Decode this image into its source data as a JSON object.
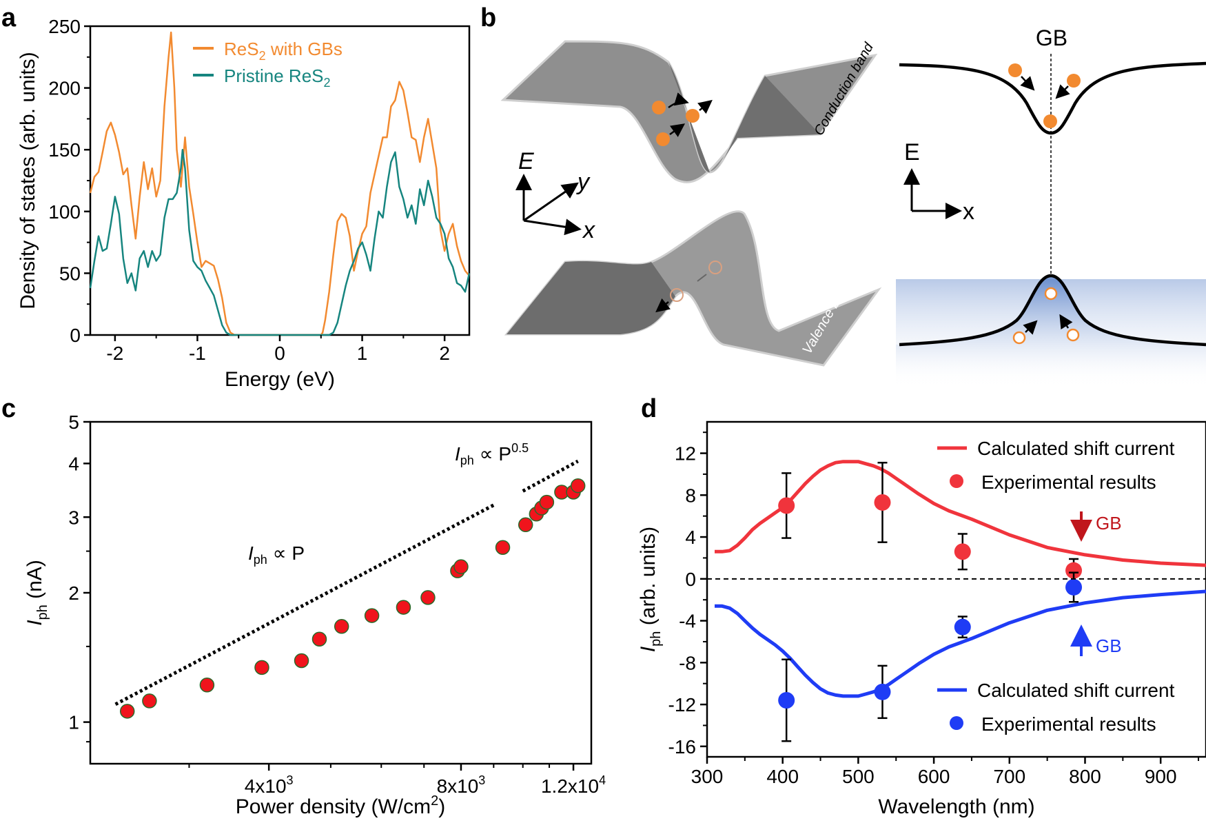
{
  "colors": {
    "orange": "#F28A30",
    "teal": "#16857F",
    "red": "#F0343C",
    "blue": "#1F3CF5",
    "dark_red": "#C0161C",
    "gray": "#8a8a8a"
  },
  "panels": {
    "a": "a",
    "b": "b",
    "c": "c",
    "d": "d"
  },
  "panel_b": {
    "conduction_label": "Conduction band",
    "valence_label": "Valence band",
    "axis_e": "E",
    "axis_x": "x",
    "axis_y": "y",
    "gb_label": "GB",
    "right_axis_e": "E",
    "right_axis_x": "x"
  },
  "chart_data": [
    {
      "id": "a",
      "type": "line",
      "xlabel": "Energy (eV)",
      "ylabel": "Density of states (arb. units)",
      "xlim": [
        -2.3,
        2.3
      ],
      "ylim": [
        0,
        250
      ],
      "xticks": [
        -2,
        -1,
        0,
        1,
        2
      ],
      "xtick_labels": [
        "-2",
        "-1",
        "0",
        "1",
        "2"
      ],
      "yticks": [
        0,
        50,
        100,
        150,
        200,
        250
      ],
      "ytick_labels": [
        "0",
        "50",
        "100",
        "150",
        "200",
        "250"
      ],
      "legend": [
        {
          "name": "ReS",
          "sub": "2",
          "suffix": " with GBs"
        },
        {
          "name": "Pristine ReS",
          "sub": "2",
          "suffix": ""
        }
      ],
      "series": [
        {
          "name": "ReS2 with GBs",
          "color": "#F28A30",
          "x": [
            -2.3,
            -2.25,
            -2.2,
            -2.15,
            -2.1,
            -2.05,
            -2.0,
            -1.95,
            -1.9,
            -1.85,
            -1.8,
            -1.75,
            -1.7,
            -1.65,
            -1.6,
            -1.55,
            -1.5,
            -1.45,
            -1.4,
            -1.35,
            -1.32,
            -1.28,
            -1.25,
            -1.2,
            -1.15,
            -1.1,
            -1.05,
            -1.0,
            -0.95,
            -0.9,
            -0.85,
            -0.8,
            -0.75,
            -0.7,
            -0.65,
            -0.6,
            -0.55,
            -0.52,
            -0.5,
            0.5,
            0.52,
            0.55,
            0.6,
            0.65,
            0.7,
            0.75,
            0.8,
            0.85,
            0.9,
            0.95,
            1.0,
            1.05,
            1.1,
            1.15,
            1.2,
            1.25,
            1.3,
            1.35,
            1.4,
            1.45,
            1.5,
            1.55,
            1.6,
            1.65,
            1.7,
            1.75,
            1.8,
            1.85,
            1.9,
            1.95,
            2.0,
            2.05,
            2.1,
            2.15,
            2.2,
            2.25,
            2.3
          ],
          "y": [
            115,
            128,
            132,
            148,
            165,
            172,
            162,
            148,
            130,
            135,
            105,
            78,
            112,
            140,
            118,
            135,
            112,
            125,
            185,
            225,
            245,
            200,
            150,
            120,
            160,
            120,
            98,
            75,
            55,
            60,
            58,
            56,
            45,
            30,
            10,
            2,
            0,
            0,
            0,
            0,
            2,
            12,
            35,
            65,
            92,
            98,
            95,
            80,
            52,
            68,
            82,
            88,
            115,
            130,
            145,
            160,
            160,
            185,
            190,
            205,
            198,
            180,
            160,
            158,
            140,
            160,
            175,
            155,
            135,
            85,
            68,
            82,
            90,
            72,
            60,
            52,
            48
          ]
        },
        {
          "name": "Pristine ReS2",
          "color": "#16857F",
          "x": [
            -2.3,
            -2.25,
            -2.2,
            -2.15,
            -2.1,
            -2.05,
            -2.0,
            -1.95,
            -1.9,
            -1.85,
            -1.8,
            -1.75,
            -1.7,
            -1.65,
            -1.6,
            -1.55,
            -1.5,
            -1.45,
            -1.4,
            -1.35,
            -1.3,
            -1.25,
            -1.2,
            -1.18,
            -1.15,
            -1.1,
            -1.05,
            -1.0,
            -0.95,
            -0.9,
            -0.85,
            -0.8,
            -0.75,
            -0.7,
            -0.65,
            -0.6,
            0.6,
            0.65,
            0.7,
            0.75,
            0.8,
            0.85,
            0.9,
            0.95,
            1.0,
            1.05,
            1.1,
            1.15,
            1.2,
            1.25,
            1.3,
            1.35,
            1.4,
            1.45,
            1.5,
            1.55,
            1.6,
            1.65,
            1.7,
            1.75,
            1.8,
            1.85,
            1.9,
            1.95,
            2.0,
            2.05,
            2.1,
            2.15,
            2.2,
            2.25,
            2.3
          ],
          "y": [
            38,
            60,
            80,
            68,
            70,
            90,
            112,
            98,
            62,
            42,
            50,
            36,
            62,
            68,
            55,
            68,
            60,
            65,
            95,
            110,
            110,
            115,
            135,
            150,
            135,
            85,
            60,
            55,
            52,
            44,
            38,
            32,
            20,
            8,
            2,
            0,
            0,
            2,
            10,
            25,
            40,
            52,
            60,
            70,
            75,
            65,
            52,
            78,
            100,
            95,
            120,
            140,
            148,
            120,
            110,
            95,
            105,
            90,
            118,
            105,
            125,
            112,
            95,
            90,
            82,
            62,
            55,
            42,
            40,
            35,
            50
          ]
        }
      ]
    },
    {
      "id": "c",
      "type": "scatter",
      "scale": "log-log",
      "xlabel": "Power density (W/cm",
      "xlabel_sup": "2",
      "xlabel_end": ")",
      "ylabel_main": "I",
      "ylabel_sub": "ph",
      "ylabel_end": " (nA)",
      "xlim": [
        2100,
        12800
      ],
      "ylim": [
        0.8,
        5
      ],
      "xticks": [
        4000,
        8000,
        12000
      ],
      "xtick_labels": [
        "4x10",
        "8x10",
        "1.2x10"
      ],
      "xtick_sups": [
        "3",
        "3",
        "4"
      ],
      "yticks": [
        1,
        2,
        3,
        4,
        5
      ],
      "ytick_labels": [
        "1",
        "2",
        "3",
        "4",
        "5"
      ],
      "annotations": {
        "linear": {
          "main": "I",
          "sub": "ph",
          "rest": " ∝ P"
        },
        "sublinear": {
          "main": "I",
          "sub": "ph",
          "rest": " ∝ P",
          "sup": "0.5"
        }
      },
      "points": {
        "x": [
          2400,
          2600,
          3200,
          3900,
          4500,
          4800,
          5200,
          5800,
          6500,
          7100,
          7900,
          8000,
          9300,
          10100,
          10500,
          10700,
          10900,
          11500,
          12000,
          12200
        ],
        "y": [
          1.06,
          1.12,
          1.22,
          1.34,
          1.39,
          1.56,
          1.67,
          1.77,
          1.85,
          1.95,
          2.25,
          2.3,
          2.55,
          2.88,
          3.05,
          3.15,
          3.25,
          3.43,
          3.43,
          3.55
        ]
      },
      "guide_lines": [
        {
          "x": [
            2300,
            9000
          ],
          "y": [
            1.1,
            3.2
          ]
        },
        {
          "x": [
            10000,
            12200
          ],
          "y": [
            3.45,
            4.05
          ]
        }
      ]
    },
    {
      "id": "d",
      "type": "line",
      "xlabel": "Wavelength (nm)",
      "ylabel_main": "I",
      "ylabel_sub": "ph",
      "ylabel_end": " (arb. units)",
      "xlim": [
        300,
        960
      ],
      "ylim": [
        -17,
        15
      ],
      "xticks": [
        300,
        400,
        500,
        600,
        700,
        800,
        900
      ],
      "xtick_labels": [
        "300",
        "400",
        "500",
        "600",
        "700",
        "800",
        "900"
      ],
      "yticks": [
        12,
        8,
        4,
        0,
        -4,
        -8,
        -12,
        -16
      ],
      "ytick_labels": [
        "12",
        "8",
        "4",
        "0",
        "-4",
        "-8",
        "-12",
        "-16"
      ],
      "legend": [
        "Calculated shift current",
        "Experimental results",
        "Calculated shift current",
        "Experimental results"
      ],
      "gb_labels": [
        "GB",
        "GB"
      ],
      "series": [
        {
          "name": "Calculated shift current (GB down)",
          "color": "#F0343C",
          "x": [
            310,
            320,
            330,
            340,
            350,
            360,
            370,
            380,
            390,
            400,
            410,
            420,
            430,
            440,
            450,
            460,
            470,
            480,
            490,
            500,
            510,
            520,
            530,
            540,
            550,
            560,
            570,
            580,
            600,
            620,
            650,
            700,
            750,
            800,
            850,
            900,
            960
          ],
          "y": [
            2.6,
            2.6,
            2.7,
            3.2,
            3.9,
            4.7,
            5.3,
            5.8,
            6.3,
            6.8,
            7.5,
            8.3,
            9.1,
            9.8,
            10.4,
            10.8,
            11.1,
            11.2,
            11.2,
            11.2,
            11.0,
            10.8,
            10.5,
            10.1,
            9.6,
            9.1,
            8.6,
            8.1,
            7.2,
            6.5,
            5.7,
            4.2,
            3.0,
            2.3,
            1.8,
            1.5,
            1.3
          ]
        },
        {
          "name": "Calculated shift current (GB up)",
          "color": "#1F3CF5",
          "x": [
            310,
            320,
            330,
            340,
            350,
            360,
            370,
            380,
            390,
            400,
            410,
            420,
            430,
            440,
            450,
            460,
            470,
            480,
            490,
            500,
            510,
            520,
            530,
            540,
            550,
            560,
            570,
            580,
            600,
            620,
            650,
            700,
            750,
            800,
            850,
            900,
            960
          ],
          "y": [
            -2.6,
            -2.6,
            -2.8,
            -3.3,
            -4.0,
            -4.7,
            -5.3,
            -5.8,
            -6.3,
            -6.9,
            -7.6,
            -8.4,
            -9.2,
            -9.9,
            -10.5,
            -10.9,
            -11.1,
            -11.2,
            -11.2,
            -11.2,
            -11.0,
            -10.8,
            -10.5,
            -10.1,
            -9.6,
            -9.1,
            -8.6,
            -8.1,
            -7.2,
            -6.5,
            -5.7,
            -4.2,
            -3.0,
            -2.3,
            -1.8,
            -1.5,
            -1.2
          ]
        },
        {
          "name": "Experimental results (GB down)",
          "color": "#F0343C",
          "type": "scatter",
          "x": [
            405,
            532,
            638,
            785
          ],
          "y": [
            7.0,
            7.3,
            2.6,
            0.8
          ],
          "err": [
            3.1,
            3.8,
            1.7,
            1.1
          ]
        },
        {
          "name": "Experimental results (GB up)",
          "color": "#1F3CF5",
          "type": "scatter",
          "x": [
            405,
            532,
            638,
            785
          ],
          "y": [
            -11.6,
            -10.8,
            -4.6,
            -0.8
          ],
          "err": [
            3.9,
            2.5,
            1.0,
            1.4
          ]
        }
      ]
    }
  ]
}
